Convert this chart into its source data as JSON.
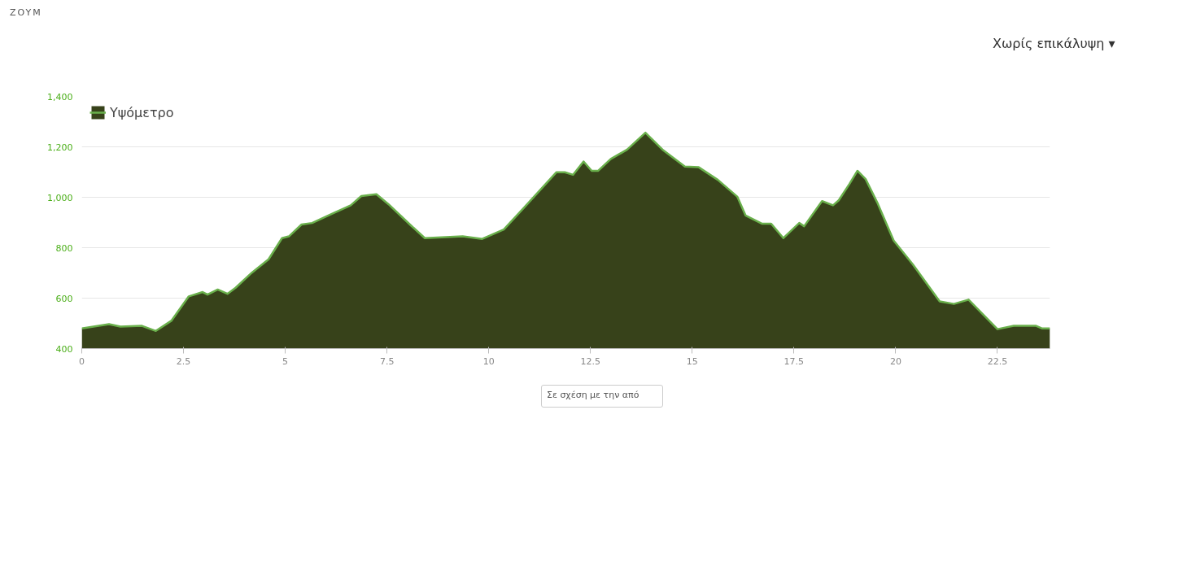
{
  "chart_data": {
    "type": "area",
    "annotations": [
      "ZOYM",
      "Χωρίς επικάλυψη ▾",
      "Σε σχέση με την από"
    ],
    "xlim": [
      0,
      23.79
    ],
    "xticks": [
      0,
      2.5,
      5,
      7.5,
      10,
      12.5,
      15,
      17.5,
      20,
      22.5
    ],
    "ylim": [
      400,
      1400
    ],
    "yticks": [
      400,
      600,
      800,
      {
        "value": 1000,
        "label": "1,000"
      },
      {
        "value": 1200,
        "label": "1,200"
      },
      {
        "value": 1400,
        "label": "1,400"
      }
    ],
    "grid": "y",
    "legend": "top left",
    "series": [
      {
        "name": "Υψόμετρο",
        "color": "#37421a",
        "x": [
          0,
          0.67,
          0.95,
          1.48,
          1.82,
          2.2,
          2.63,
          2.97,
          3.09,
          3.34,
          3.58,
          3.78,
          4.18,
          4.59,
          4.92,
          5.09,
          5.4,
          5.66,
          6.2,
          6.61,
          6.87,
          7.24,
          7.54,
          8.09,
          8.43,
          9.36,
          9.84,
          10.37,
          10.92,
          11.66,
          11.87,
          12.07,
          12.33,
          12.53,
          12.69,
          13.0,
          13.4,
          13.85,
          14.29,
          14.82,
          15.16,
          15.63,
          16.11,
          16.31,
          16.72,
          16.94,
          17.24,
          17.63,
          17.75,
          18.19,
          18.46,
          18.6,
          18.86,
          19.06,
          19.26,
          19.55,
          19.95,
          20.42,
          21.08,
          21.43,
          21.79,
          22.5,
          22.9,
          23.45,
          23.59,
          23.79
        ],
        "values": [
          480,
          497,
          487,
          490,
          470,
          510,
          607,
          624,
          614,
          634,
          617,
          641,
          701,
          754,
          838,
          845,
          892,
          898,
          938,
          968,
          1005,
          1012,
          972,
          888,
          838,
          845,
          835,
          872,
          968,
          1099,
          1099,
          1089,
          1142,
          1105,
          1105,
          1152,
          1189,
          1256,
          1186,
          1122,
          1119,
          1069,
          1002,
          928,
          895,
          895,
          838,
          898,
          885,
          985,
          968,
          988,
          1052,
          1105,
          1072,
          978,
          828,
          734,
          587,
          577,
          594,
          477,
          490,
          490,
          480,
          480
        ]
      }
    ]
  }
}
